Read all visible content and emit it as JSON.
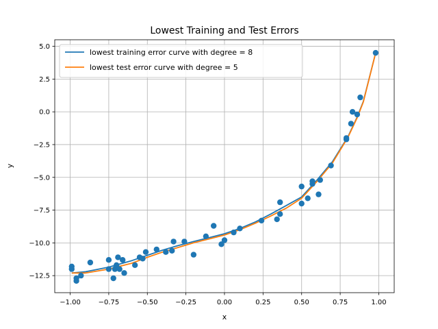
{
  "chart_data": {
    "type": "scatter",
    "title": "Lowest Training and Test Errors",
    "xlabel": "x",
    "ylabel": "y",
    "xlim": [
      -1.1,
      1.1
    ],
    "ylim": [
      -13.8,
      5.5
    ],
    "xticks": [
      -1.0,
      -0.75,
      -0.5,
      -0.25,
      0.0,
      0.25,
      0.5,
      0.75,
      1.0
    ],
    "xtick_labels": [
      "−1.00",
      "−0.75",
      "−0.50",
      "−0.25",
      "0.00",
      "0.25",
      "0.50",
      "0.75",
      "1.00"
    ],
    "yticks": [
      -12.5,
      -10.0,
      -7.5,
      -5.0,
      -2.5,
      0.0,
      2.5,
      5.0
    ],
    "ytick_labels": [
      "−12.5",
      "−10.0",
      "−7.5",
      "−5.0",
      "−2.5",
      "0.0",
      "2.5",
      "5.0"
    ],
    "grid": true,
    "legend_position": "top-left",
    "points": {
      "color": "#1f77b4",
      "x": [
        -0.99,
        -0.99,
        -0.96,
        -0.96,
        -0.93,
        -0.87,
        -0.75,
        -0.75,
        -0.72,
        -0.71,
        -0.7,
        -0.69,
        -0.68,
        -0.66,
        -0.65,
        -0.58,
        -0.55,
        -0.53,
        -0.51,
        -0.44,
        -0.38,
        -0.34,
        -0.33,
        -0.26,
        -0.2,
        -0.12,
        -0.07,
        -0.02,
        0.0,
        0.06,
        0.1,
        0.24,
        0.34,
        0.36,
        0.36,
        0.5,
        0.5,
        0.54,
        0.57,
        0.57,
        0.61,
        0.62,
        0.69,
        0.79,
        0.79,
        0.82,
        0.83,
        0.86,
        0.88,
        0.98
      ],
      "y": [
        -11.8,
        -12.0,
        -12.9,
        -12.7,
        -12.5,
        -11.5,
        -11.3,
        -12.0,
        -12.7,
        -12.0,
        -11.7,
        -11.1,
        -12.0,
        -11.3,
        -12.3,
        -11.7,
        -11.1,
        -11.2,
        -10.7,
        -10.5,
        -10.7,
        -10.6,
        -9.9,
        -9.9,
        -10.9,
        -9.5,
        -8.7,
        -10.1,
        -9.8,
        -9.2,
        -8.9,
        -8.3,
        -8.2,
        -7.8,
        -6.9,
        -7.0,
        -5.7,
        -6.6,
        -5.5,
        -5.3,
        -6.3,
        -5.2,
        -4.1,
        -2.1,
        -2.0,
        -0.9,
        0.0,
        -0.2,
        1.1,
        4.5
      ]
    },
    "series": [
      {
        "name": "lowest training error curve with degree = 8",
        "color": "#1f77b4",
        "x": [
          -0.99,
          -0.9,
          -0.75,
          -0.6,
          -0.5,
          -0.4,
          -0.3,
          -0.2,
          -0.1,
          0.0,
          0.1,
          0.2,
          0.3,
          0.4,
          0.5,
          0.6,
          0.7,
          0.8,
          0.86,
          0.9,
          0.98
        ],
        "y": [
          -12.3,
          -12.2,
          -11.85,
          -11.35,
          -10.95,
          -10.55,
          -10.2,
          -9.9,
          -9.6,
          -9.3,
          -8.9,
          -8.4,
          -7.8,
          -7.15,
          -6.5,
          -5.2,
          -3.8,
          -1.9,
          -0.4,
          0.8,
          4.5
        ]
      },
      {
        "name": "lowest test error curve with degree = 5",
        "color": "#ff7f0e",
        "x": [
          -0.99,
          -0.9,
          -0.75,
          -0.6,
          -0.5,
          -0.4,
          -0.3,
          -0.2,
          -0.1,
          0.0,
          0.1,
          0.2,
          0.3,
          0.4,
          0.5,
          0.6,
          0.7,
          0.8,
          0.86,
          0.9,
          0.98
        ],
        "y": [
          -12.3,
          -12.3,
          -12.0,
          -11.55,
          -11.1,
          -10.7,
          -10.35,
          -10.0,
          -9.7,
          -9.4,
          -9.0,
          -8.5,
          -7.95,
          -7.35,
          -6.6,
          -5.3,
          -3.9,
          -1.95,
          -0.45,
          0.75,
          4.5
        ]
      }
    ]
  }
}
